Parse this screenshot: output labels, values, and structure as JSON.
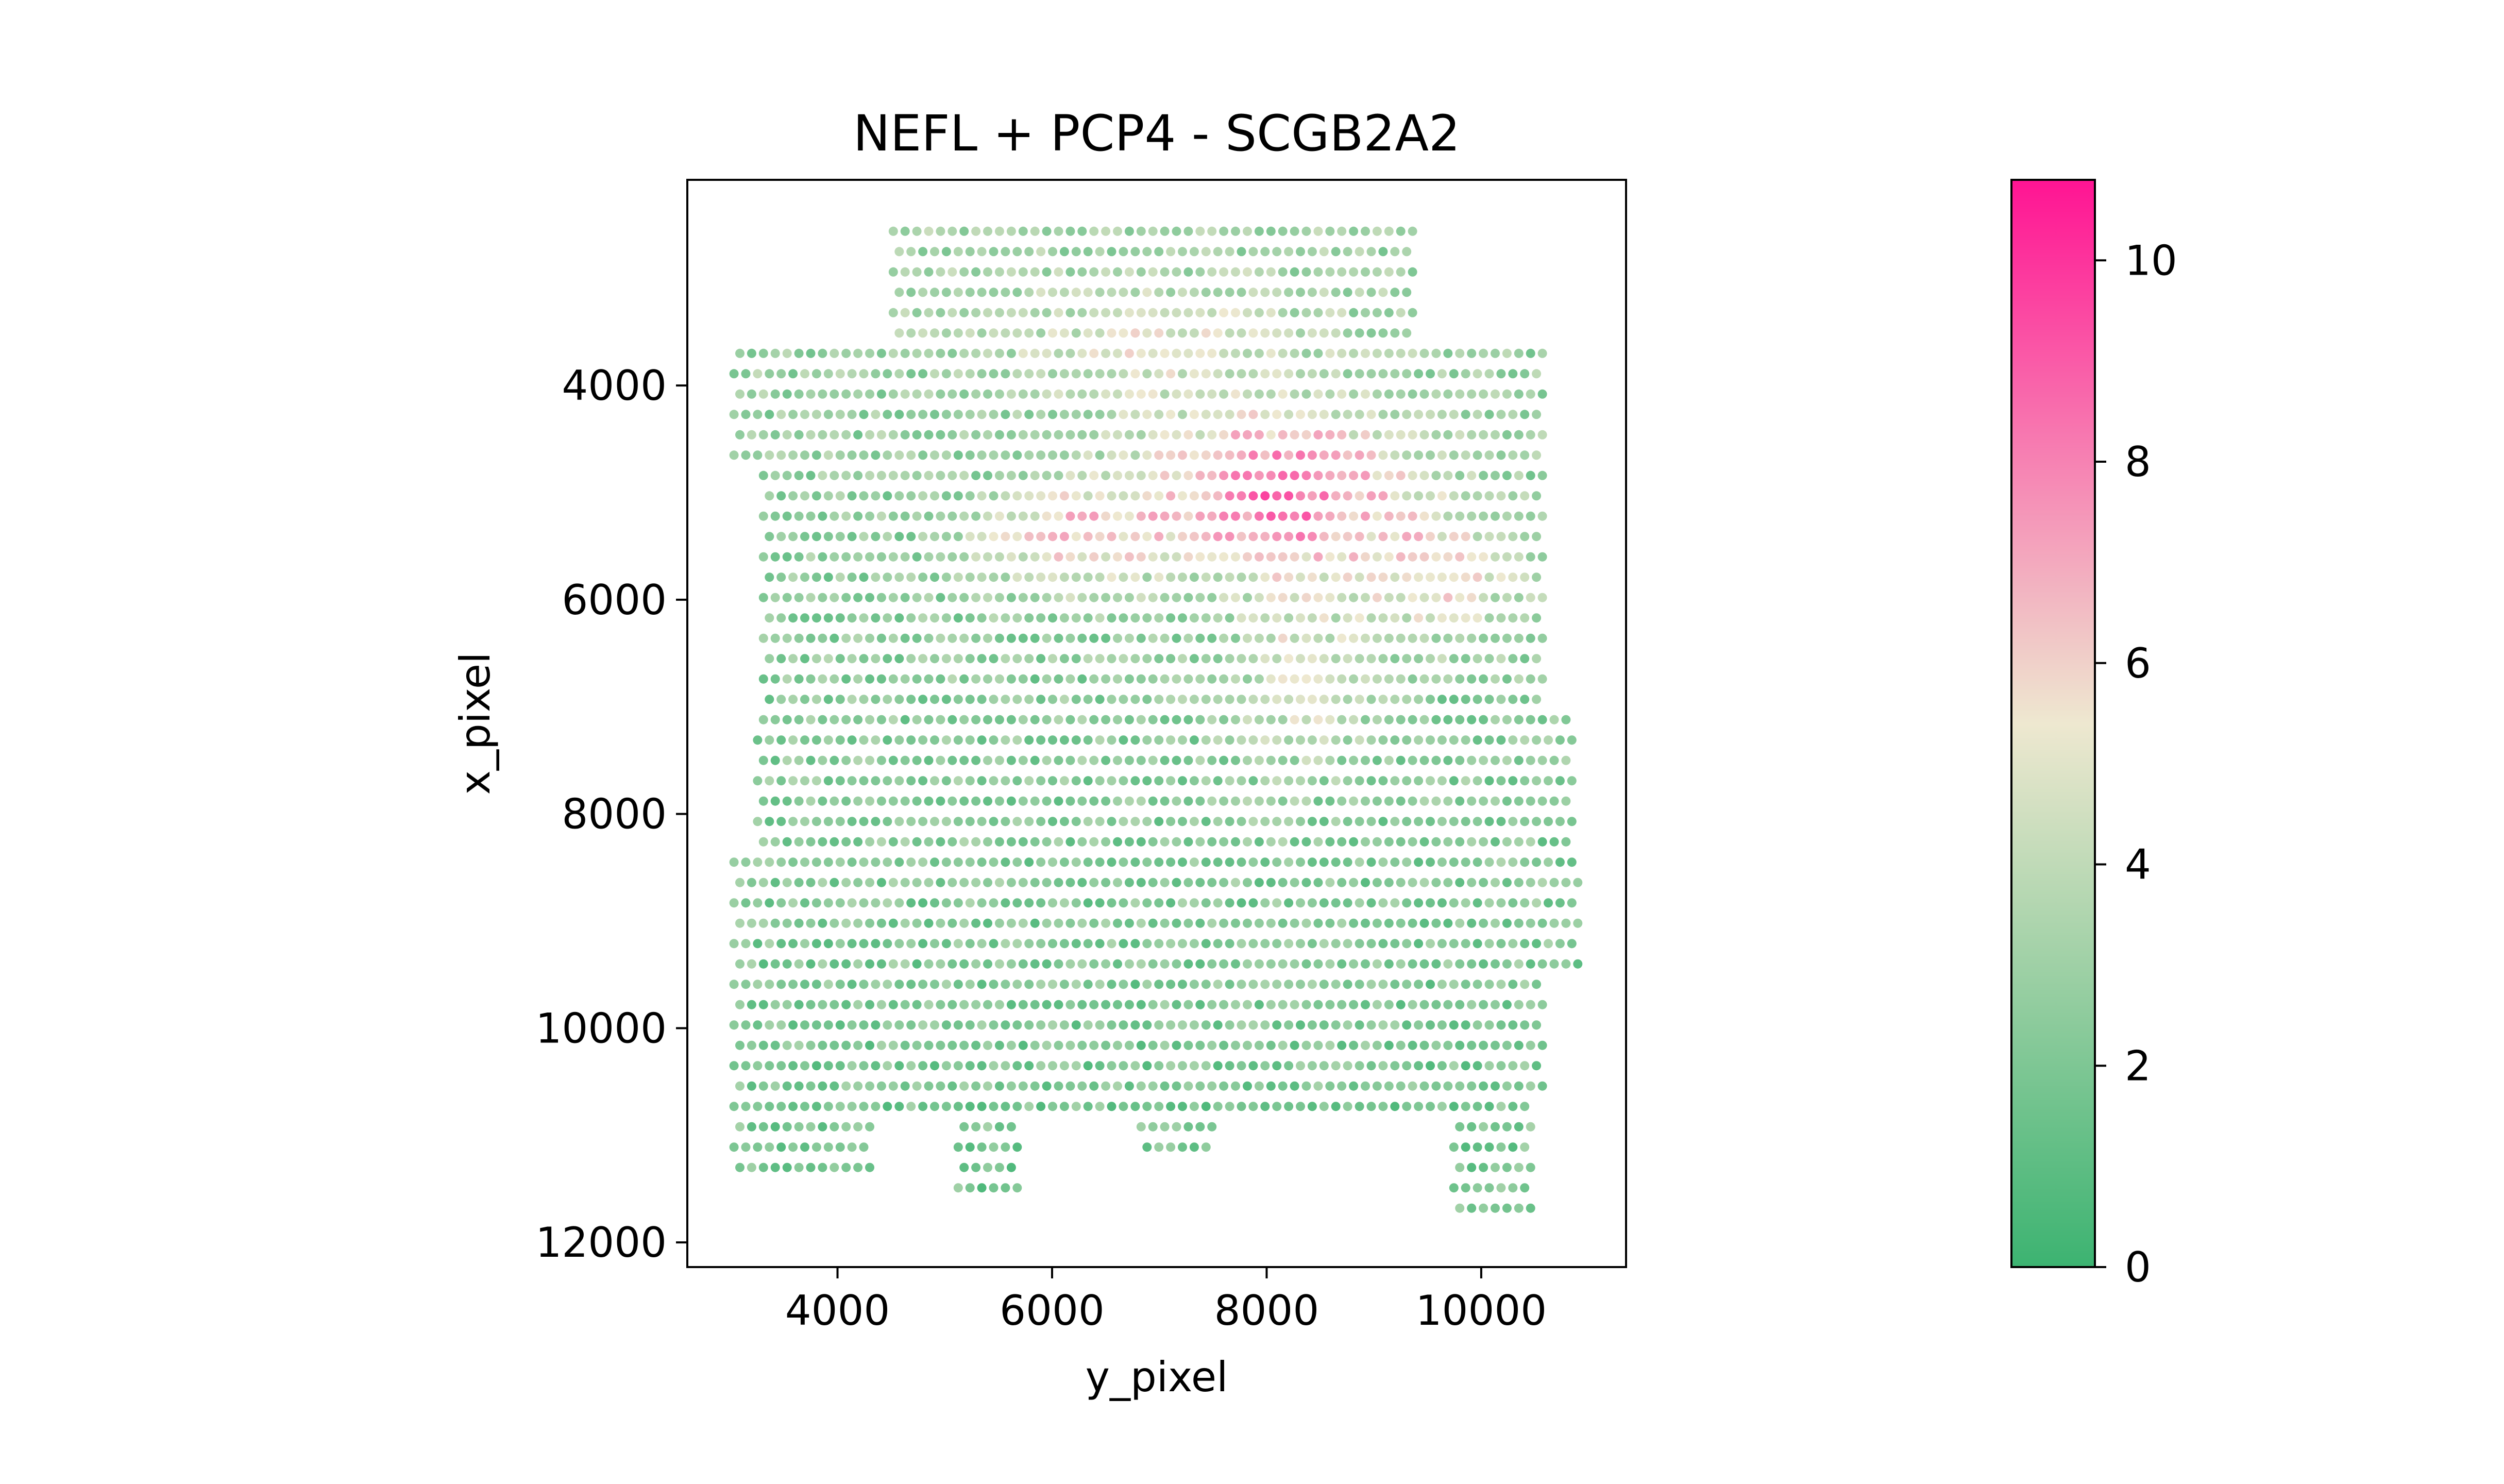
{
  "chart_data": {
    "type": "scatter",
    "title": "NEFL + PCP4 - SCGB2A2",
    "xlabel": "y_pixel",
    "ylabel": "x_pixel",
    "xlim": [
      2600,
      11350
    ],
    "ylim": [
      12230,
      2080
    ],
    "y_inverted": true,
    "x_ticks": [
      4000,
      6000,
      8000,
      10000
    ],
    "x_tick_labels": [
      "4000",
      "6000",
      "8000",
      "10000"
    ],
    "y_ticks": [
      4000,
      6000,
      8000,
      10000,
      12000
    ],
    "y_tick_labels": [
      "4000",
      "6000",
      "8000",
      "10000",
      "12000"
    ],
    "grid": false,
    "colorbar": {
      "min": 0,
      "max": 10.8,
      "ticks": [
        0,
        2,
        4,
        6,
        8,
        10
      ],
      "tick_labels": [
        "0",
        "2",
        "4",
        "6",
        "8",
        "10"
      ],
      "colors": [
        "#3CB371",
        "#EEE8D0",
        "#FF1493"
      ],
      "mid_value": 5.4
    },
    "spot_grid": {
      "x_step": 110,
      "y_step": 190
    },
    "regions": [
      {
        "x_range": [
          4500,
          9400
        ],
        "y_range": [
          2550,
          3600
        ]
      },
      {
        "x_range": [
          3000,
          10600
        ],
        "y_range": [
          3600,
          4750
        ]
      },
      {
        "x_range": [
          3300,
          10600
        ],
        "y_range": [
          4750,
          7000
        ]
      },
      {
        "x_range": [
          3250,
          10850
        ],
        "y_range": [
          7000,
          8400
        ]
      },
      {
        "x_range": [
          3000,
          10900
        ],
        "y_range": [
          8400,
          9500
        ]
      },
      {
        "x_range": [
          3000,
          10600
        ],
        "y_range": [
          9500,
          10650
        ]
      },
      {
        "x_range": [
          3000,
          9900
        ],
        "y_range": [
          10650,
          10850
        ]
      },
      {
        "x_range": [
          3000,
          4300
        ],
        "y_range": [
          10850,
          11300
        ]
      },
      {
        "x_range": [
          5100,
          5700
        ],
        "y_range": [
          10900,
          11600
        ]
      },
      {
        "x_range": [
          6800,
          7500
        ],
        "y_range": [
          10850,
          11200
        ]
      },
      {
        "x_range": [
          9700,
          10500
        ],
        "y_range": [
          10550,
          11800
        ]
      }
    ],
    "hotspots": [
      {
        "x": 8100,
        "y": 5000,
        "sx": 1200,
        "sy": 700,
        "amp": 6.0
      },
      {
        "x": 6200,
        "y": 5400,
        "sx": 800,
        "sy": 500,
        "amp": 3.5
      },
      {
        "x": 9600,
        "y": 5800,
        "sx": 700,
        "sy": 600,
        "amp": 3.0
      },
      {
        "x": 8300,
        "y": 6700,
        "sx": 600,
        "sy": 900,
        "amp": 2.5
      },
      {
        "x": 7000,
        "y": 3600,
        "sx": 1500,
        "sy": 600,
        "amp": 2.0
      }
    ],
    "baseline": {
      "top": 3.0,
      "bottom": 1.8
    }
  }
}
